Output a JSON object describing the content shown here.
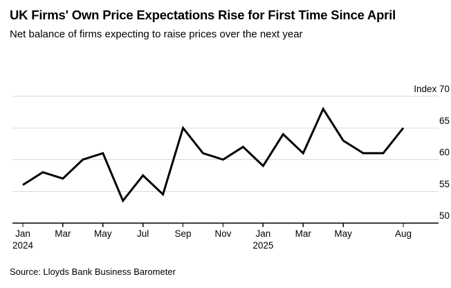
{
  "header": {
    "title": "UK Firms' Own Price Expectations Rise for First Time Since April",
    "subtitle": "Net balance of firms expecting to raise prices over the next year"
  },
  "footer": {
    "source": "Source: Lloyds Bank Business Barometer"
  },
  "colors": {
    "background": "#ffffff",
    "line": "#000000",
    "grid": "#d8d8d8",
    "axis": "#000000",
    "text": "#000000"
  },
  "chart_data": {
    "type": "line",
    "title": "UK Firms' Own Price Expectations Rise for First Time Since April",
    "subtitle": "Net balance of firms expecting to raise prices over the next year",
    "source": "Source: Lloyds Bank Business Barometer",
    "unit_label": "Index",
    "ylim": [
      50,
      70
    ],
    "grid": "horizontal",
    "legend": "none",
    "x": [
      "Jan 2024",
      "Feb 2024",
      "Mar 2024",
      "Apr 2024",
      "May 2024",
      "Jun 2024",
      "Jul 2024",
      "Aug 2024",
      "Sep 2024",
      "Oct 2024",
      "Nov 2024",
      "Dec 2024",
      "Jan 2025",
      "Feb 2025",
      "Mar 2025",
      "Apr 2025",
      "May 2025",
      "Jun 2025",
      "Jul 2025",
      "Aug 2025"
    ],
    "values": [
      56,
      58,
      57,
      60,
      61,
      53.5,
      57.5,
      54.5,
      65,
      61,
      60,
      62,
      59,
      64,
      61,
      68,
      63,
      61,
      61,
      65
    ],
    "y_ticks": [
      {
        "value": 70,
        "label": "Index 70"
      },
      {
        "value": 65,
        "label": "65"
      },
      {
        "value": 60,
        "label": "60"
      },
      {
        "value": 55,
        "label": "55"
      },
      {
        "value": 50,
        "label": "50"
      }
    ],
    "x_ticks": [
      {
        "index": 0,
        "label": "Jan",
        "sublabel": "2024"
      },
      {
        "index": 2,
        "label": "Mar"
      },
      {
        "index": 4,
        "label": "May"
      },
      {
        "index": 6,
        "label": "Jul"
      },
      {
        "index": 8,
        "label": "Sep"
      },
      {
        "index": 10,
        "label": "Nov"
      },
      {
        "index": 12,
        "label": "Jan",
        "sublabel": "2025"
      },
      {
        "index": 14,
        "label": "Mar"
      },
      {
        "index": 16,
        "label": "May"
      },
      {
        "index": 19,
        "label": "Aug"
      }
    ]
  }
}
